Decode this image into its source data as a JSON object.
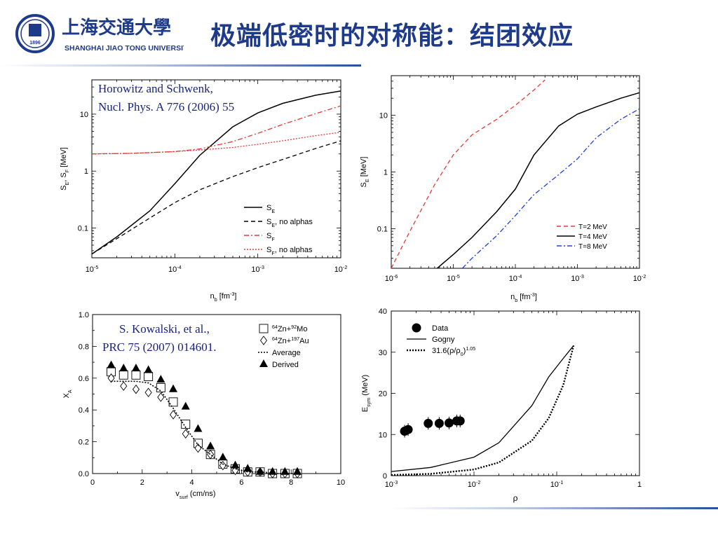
{
  "header": {
    "title": "极端低密时的对称能：结团效应",
    "logo": {
      "name_cn": "上海交通大學",
      "name_en": "SHANGHAI JIAO TONG UNIVERSITY",
      "year": "1896"
    }
  },
  "colors": {
    "title": "#1e3a8a",
    "citation": "#1a237e",
    "red": "#e53935",
    "blue": "#1f3fe0"
  },
  "chart_data": [
    {
      "id": "panel1",
      "type": "line",
      "citation": [
        "Horowitz and Schwenk,",
        "Nucl. Phys. A 776 (2006) 55"
      ],
      "xlabel": "n_b [fm^-3]",
      "ylabel": "S_E, S_F [MeV]",
      "xscale": "log",
      "yscale": "log",
      "xlim": [
        1e-05,
        0.01
      ],
      "ylim": [
        0.03,
        40
      ],
      "xticks": [
        "10-5",
        "10-4",
        "10-3",
        "10-2"
      ],
      "yticks": [
        {
          "v": 0.1,
          "label": "0.1"
        },
        {
          "v": 1,
          "label": "1"
        },
        {
          "v": 10,
          "label": "10"
        }
      ],
      "legend_position": "bottom-right",
      "series": [
        {
          "name": "S_E",
          "legend_main": "S",
          "legend_sub": "E",
          "legend_suffix": "",
          "style": "solid",
          "color": "#000000",
          "x": [
            1e-05,
            2e-05,
            5e-05,
            0.0001,
            0.0002,
            0.0005,
            0.001,
            0.002,
            0.005,
            0.01
          ],
          "y": [
            0.035,
            0.07,
            0.2,
            0.6,
            1.9,
            6,
            10.5,
            15.5,
            21.5,
            25.5
          ]
        },
        {
          "name": "S_E, no alphas",
          "legend_main": "S",
          "legend_sub": "E",
          "legend_suffix": ", no alphas",
          "style": "dashed",
          "color": "#000000",
          "x": [
            1e-05,
            2e-05,
            5e-05,
            0.0001,
            0.0002,
            0.0005,
            0.001,
            0.002,
            0.005,
            0.01
          ],
          "y": [
            0.035,
            0.065,
            0.15,
            0.28,
            0.47,
            0.8,
            1.15,
            1.6,
            2.5,
            3.4
          ]
        },
        {
          "name": "S_F",
          "legend_main": "S",
          "legend_sub": "F",
          "legend_suffix": "",
          "style": "dashdot",
          "color": "#e53935",
          "x": [
            1e-05,
            3e-05,
            0.0001,
            0.0002,
            0.0005,
            0.001,
            0.002,
            0.005,
            0.01
          ],
          "y": [
            2.0,
            2.05,
            2.2,
            2.45,
            3.3,
            4.6,
            6.6,
            10.2,
            14
          ]
        },
        {
          "name": "S_F, no alphas",
          "legend_main": "S",
          "legend_sub": "F",
          "legend_suffix": ", no alphas",
          "style": "dotted",
          "color": "#e53935",
          "x": [
            1e-05,
            3e-05,
            0.0001,
            0.0002,
            0.0005,
            0.001,
            0.002,
            0.005,
            0.01
          ],
          "y": [
            2.0,
            2.05,
            2.2,
            2.35,
            2.6,
            2.95,
            3.4,
            4.2,
            4.8
          ]
        }
      ]
    },
    {
      "id": "panel2",
      "type": "line",
      "xlabel": "n_b [fm^-3]",
      "ylabel": "S_E [MeV]",
      "xscale": "log",
      "yscale": "log",
      "xlim": [
        1e-06,
        0.01
      ],
      "ylim": [
        0.02,
        50
      ],
      "xticks": [
        "10-6",
        "10-5",
        "10-4",
        "10-3",
        "10-2"
      ],
      "yticks": [
        {
          "v": 0.1,
          "label": "0.1"
        },
        {
          "v": 1,
          "label": "1"
        },
        {
          "v": 10,
          "label": "10"
        }
      ],
      "legend_position": "bottom-right",
      "series": [
        {
          "name": "T=2 MeV",
          "style": "dashed",
          "color": "#e53935",
          "x": [
            1e-06,
            2e-06,
            5e-06,
            1e-05,
            2e-05,
            5e-05,
            0.0001,
            0.0002,
            0.0003
          ],
          "y": [
            0.02,
            0.09,
            0.6,
            2.0,
            4.5,
            8.5,
            15,
            28,
            42
          ]
        },
        {
          "name": "T=4 MeV",
          "style": "solid",
          "color": "#000000",
          "x": [
            5.5e-06,
            1e-05,
            2e-05,
            5e-05,
            0.0001,
            0.0002,
            0.0005,
            0.001,
            0.002,
            0.005,
            0.01
          ],
          "y": [
            0.02,
            0.035,
            0.07,
            0.2,
            0.5,
            2.0,
            6.5,
            10.5,
            14,
            20,
            25
          ]
        },
        {
          "name": "T=8 MeV",
          "style": "dashdot",
          "color": "#1f3fe0",
          "x": [
            1.4e-05,
            2e-05,
            5e-05,
            0.0001,
            0.0002,
            0.0005,
            0.001,
            0.002,
            0.005,
            0.01
          ],
          "y": [
            0.02,
            0.03,
            0.075,
            0.17,
            0.4,
            0.9,
            1.7,
            4.0,
            8.5,
            13
          ]
        }
      ]
    },
    {
      "id": "panel3",
      "type": "scatter",
      "citation": [
        "S. Kowalski, et al.,",
        "PRC 75 (2007) 014601."
      ],
      "xlabel": "v_surf (cm/ns)",
      "ylabel": "X_A",
      "xlim": [
        0,
        10
      ],
      "ylim": [
        0,
        1.0
      ],
      "xticks": [
        0,
        2,
        4,
        6,
        8,
        10
      ],
      "yticks": [
        "0.0",
        "0.2",
        "0.4",
        "0.6",
        "0.8",
        "1.0"
      ],
      "legend_position": "top-right",
      "legend": [
        {
          "marker": "square",
          "pre": "64",
          "mid": "Zn+",
          "pre2": "92",
          "post": "Mo"
        },
        {
          "marker": "diamond",
          "pre": "64",
          "mid": "Zn+",
          "pre2": "197",
          "post": "Au"
        },
        {
          "marker": "dotline",
          "text": "Average"
        },
        {
          "marker": "triangle",
          "text": "Derived"
        }
      ],
      "series": [
        {
          "name": "64Zn+92Mo",
          "marker": "square",
          "x": [
            0.75,
            1.25,
            1.75,
            2.25,
            2.75,
            3.25,
            3.75,
            4.25,
            4.75,
            5.25,
            5.75,
            6.25,
            6.75,
            7.25,
            7.75,
            8.25
          ],
          "y": [
            0.64,
            0.62,
            0.62,
            0.61,
            0.54,
            0.45,
            0.31,
            0.19,
            0.12,
            0.06,
            0.03,
            0.01,
            0.01,
            0.0,
            0.0,
            0.0
          ]
        },
        {
          "name": "64Zn+197Au",
          "marker": "diamond",
          "x": [
            0.75,
            1.25,
            1.75,
            2.25,
            2.75,
            3.25,
            3.75,
            4.25,
            4.75,
            5.25,
            5.75,
            6.25,
            6.75,
            7.25,
            7.75,
            8.25
          ],
          "y": [
            0.6,
            0.55,
            0.53,
            0.51,
            0.48,
            0.37,
            0.25,
            0.16,
            0.12,
            0.05,
            0.02,
            0.01,
            0.01,
            0.0,
            0.0,
            0.0
          ]
        },
        {
          "name": "Average",
          "marker": "line",
          "x": [
            0.75,
            1.25,
            1.75,
            2.25,
            2.75,
            3.25,
            3.75,
            4.25,
            4.75,
            5.25,
            5.75,
            6.25,
            6.75,
            7.25,
            7.75,
            8.25
          ],
          "y": [
            0.58,
            0.58,
            0.58,
            0.57,
            0.52,
            0.41,
            0.29,
            0.18,
            0.12,
            0.06,
            0.03,
            0.01,
            0.01,
            0.0,
            0.0,
            0.0
          ]
        },
        {
          "name": "Derived",
          "marker": "triangle",
          "x": [
            0.75,
            1.25,
            1.75,
            2.25,
            2.75,
            3.25,
            3.75,
            4.25,
            4.75,
            5.25,
            5.75,
            6.25,
            6.75,
            7.25,
            7.75,
            8.25
          ],
          "y": [
            0.68,
            0.66,
            0.66,
            0.65,
            0.59,
            0.53,
            0.42,
            0.28,
            0.17,
            0.1,
            0.05,
            0.03,
            0.01,
            0.01,
            0.01,
            0.01
          ]
        }
      ]
    },
    {
      "id": "panel4",
      "type": "line",
      "xlabel": "ρ",
      "ylabel": "E_sym (MeV)",
      "xscale": "log",
      "xlim": [
        0.001,
        1
      ],
      "ylim": [
        0,
        40
      ],
      "xticks": [
        "10-3",
        "10-2",
        "10-1",
        "1"
      ],
      "yticks": [
        "0",
        "10",
        "20",
        "30",
        "40"
      ],
      "legend_position": "top-left",
      "legend": [
        {
          "marker": "dot",
          "text": "Data"
        },
        {
          "marker": "solid",
          "text": "Gogny"
        },
        {
          "marker": "dotted",
          "text": "31.6(ρ/ρ",
          "sub": "0",
          "tail": ")",
          "sup": "1.05"
        }
      ],
      "data_points": {
        "x": [
          0.00145,
          0.0016,
          0.0028,
          0.0038,
          0.005,
          0.0062,
          0.0068
        ],
        "y": [
          10.8,
          11.2,
          12.7,
          12.7,
          12.8,
          13.3,
          13.3
        ]
      },
      "series": [
        {
          "name": "Gogny",
          "style": "solid",
          "color": "#000000",
          "x": [
            0.001,
            0.003,
            0.01,
            0.02,
            0.05,
            0.08,
            0.12,
            0.16
          ],
          "y": [
            1.0,
            2.0,
            4.5,
            8.0,
            17.0,
            24.0,
            28.5,
            31.6
          ]
        },
        {
          "name": "31.6(ρ/ρ0)^1.05",
          "style": "dotted",
          "color": "#000000",
          "x": [
            0.001,
            0.003,
            0.01,
            0.02,
            0.05,
            0.08,
            0.12,
            0.16
          ],
          "y": [
            0.15,
            0.45,
            1.5,
            3.2,
            8.5,
            14.0,
            22.0,
            31.6
          ]
        }
      ]
    }
  ]
}
